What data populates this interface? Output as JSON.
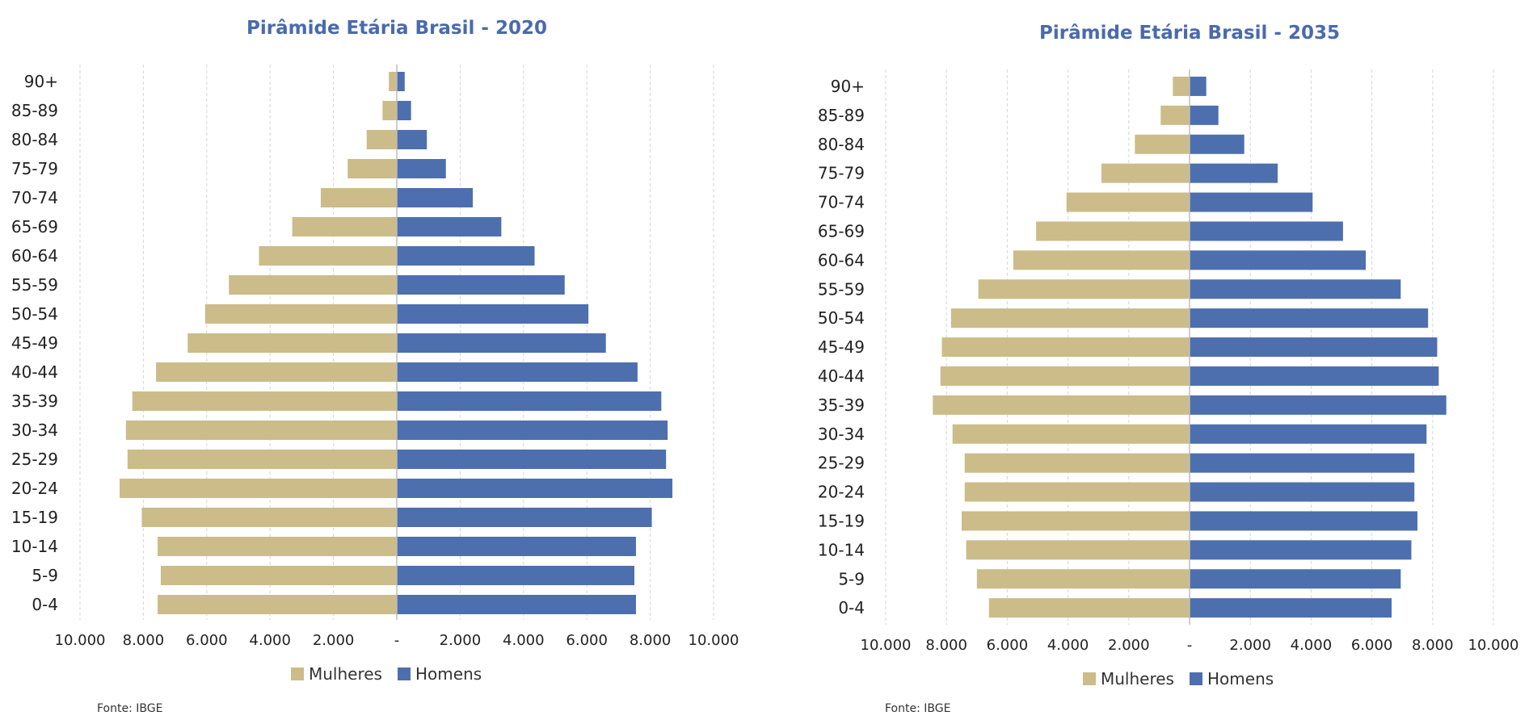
{
  "colors": {
    "women": "#cbbc89",
    "men": "#4d6fae",
    "title": "#4a6aab",
    "grid": "#d6d6d6",
    "axis": "#bdbdbd"
  },
  "chart_data": [
    {
      "type": "bar",
      "orientation": "horizontal-population-pyramid",
      "title": "Pirâmide Etária Brasil - 2020",
      "categories": [
        "90+",
        "85-89",
        "80-84",
        "75-79",
        "70-74",
        "65-69",
        "60-64",
        "55-59",
        "50-54",
        "45-49",
        "40-44",
        "35-39",
        "30-34",
        "25-29",
        "20-24",
        "15-19",
        "10-14",
        "5-9",
        "0-4"
      ],
      "series": [
        {
          "name": "Mulheres",
          "values": [
            250,
            450,
            950,
            1550,
            2400,
            3300,
            4350,
            5300,
            6050,
            6600,
            7600,
            8350,
            8550,
            8500,
            8750,
            8050,
            7550,
            7450,
            7550
          ]
        },
        {
          "name": "Homens",
          "values": [
            250,
            450,
            950,
            1550,
            2400,
            3300,
            4350,
            5300,
            6050,
            6600,
            7600,
            8350,
            8550,
            8500,
            8700,
            8050,
            7550,
            7500,
            7550
          ]
        }
      ],
      "xlim": [
        -10000,
        10000
      ],
      "tick_labels": [
        "10.000",
        "8.000",
        "6.000",
        "4.000",
        "2.000",
        "-",
        "2.000",
        "4.000",
        "6.000",
        "8.000",
        "10.000"
      ],
      "legend": [
        "Mulheres",
        "Homens"
      ],
      "legend_position": "bottom",
      "grid": true,
      "source": "Fonte: IBGE"
    },
    {
      "type": "bar",
      "orientation": "horizontal-population-pyramid",
      "title": "Pirâmide Etária Brasil - 2035",
      "categories": [
        "90+",
        "85-89",
        "80-84",
        "75-79",
        "70-74",
        "65-69",
        "60-64",
        "55-59",
        "50-54",
        "45-49",
        "40-44",
        "35-39",
        "30-34",
        "25-29",
        "20-24",
        "15-19",
        "10-14",
        "5-9",
        "0-4"
      ],
      "series": [
        {
          "name": "Mulheres",
          "values": [
            550,
            950,
            1800,
            2900,
            4050,
            5050,
            5800,
            6950,
            7850,
            8150,
            8200,
            8450,
            7800,
            7400,
            7400,
            7500,
            7350,
            7000,
            6600
          ]
        },
        {
          "name": "Homens",
          "values": [
            550,
            950,
            1800,
            2900,
            4050,
            5050,
            5800,
            6950,
            7850,
            8150,
            8200,
            8450,
            7800,
            7400,
            7400,
            7500,
            7300,
            6950,
            6650
          ]
        }
      ],
      "xlim": [
        -10000,
        10000
      ],
      "tick_labels": [
        "10.000",
        "8.000",
        "6.000",
        "4.000",
        "2.000",
        "-",
        "2.000",
        "4.000",
        "6.000",
        "8.000",
        "10.000"
      ],
      "legend": [
        "Mulheres",
        "Homens"
      ],
      "legend_position": "bottom",
      "grid": true,
      "source": "Fonte: IBGE"
    }
  ]
}
